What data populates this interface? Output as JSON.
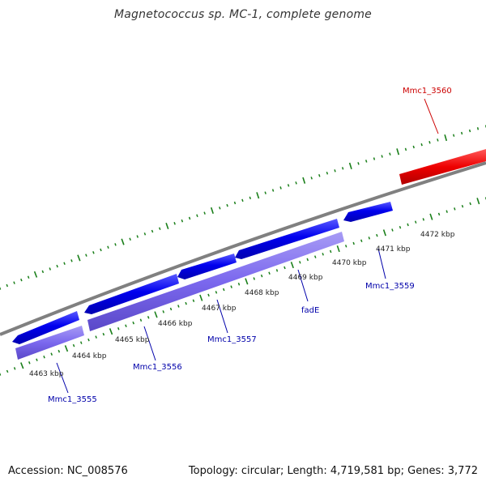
{
  "title": "Magnetococcus sp. MC-1, complete genome",
  "footer": {
    "accession": "Accession: NC_008576",
    "summary": "Topology: circular; Length: 4,719,581 bp; Genes: 3,772"
  },
  "colors": {
    "backbone": "#808080",
    "gene_forward": "#0000ee",
    "gene_reverse": "#7b68ee",
    "highlight": "#ee0000",
    "ticks": "#1a7f1a",
    "label_blue": "#0000aa",
    "label_red": "#cc0000"
  },
  "tick_labels": [
    "4463 kbp",
    "4464 kbp",
    "4465 kbp",
    "4466 kbp",
    "4467 kbp",
    "4468 kbp",
    "4469 kbp",
    "4470 kbp",
    "4471 kbp",
    "4472 kbp"
  ],
  "gene_labels": [
    "Mmc1_3555",
    "Mmc1_3556",
    "Mmc1_3557",
    "fadE",
    "Mmc1_3559",
    "Mmc1_3560"
  ]
}
